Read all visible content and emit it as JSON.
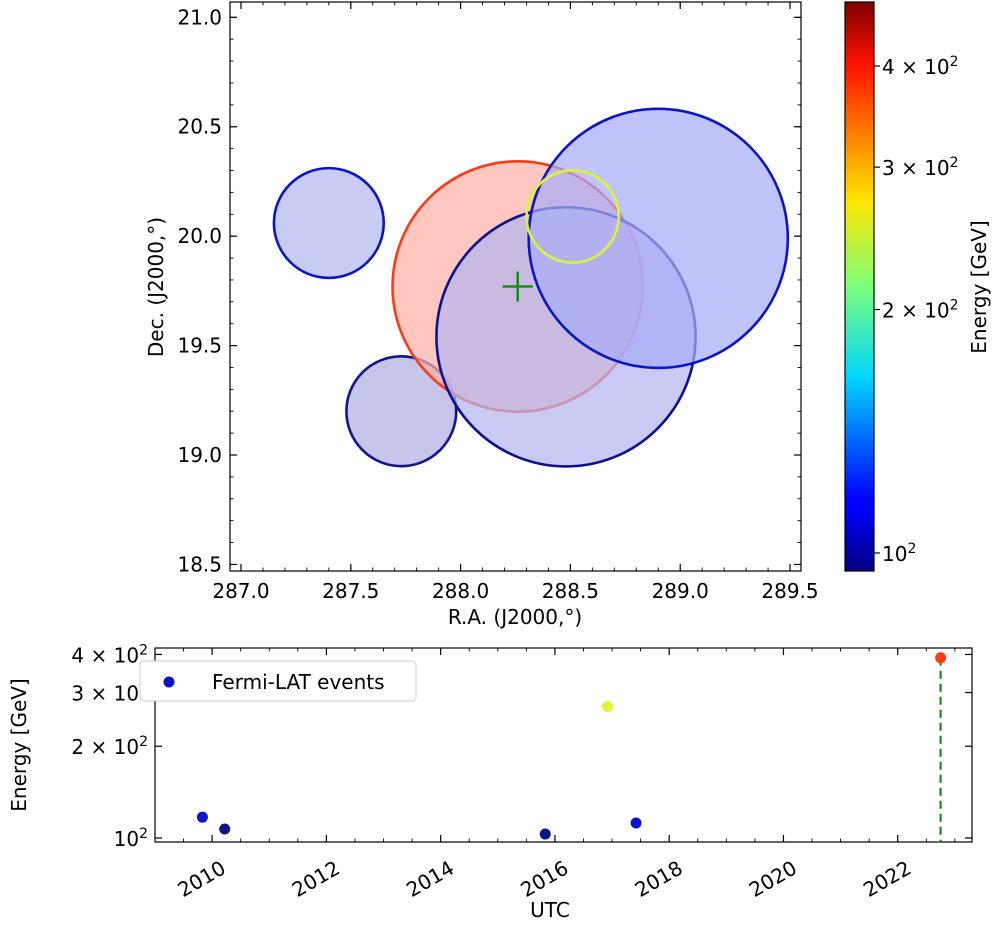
{
  "chart_data": [
    {
      "type": "scatter",
      "subtype": "sky-map-circles",
      "xlabel": "R.A. (J2000,°)",
      "ylabel": "Dec. (J2000,°)",
      "xlim": [
        286.95,
        289.55
      ],
      "ylim": [
        18.47,
        21.07
      ],
      "x_ticks": [
        287.0,
        287.5,
        288.0,
        288.5,
        289.0,
        289.5
      ],
      "x_tick_labels": [
        "287.0",
        "287.5",
        "288.0",
        "288.5",
        "289.0",
        "289.5"
      ],
      "y_ticks": [
        18.5,
        19.0,
        19.5,
        20.0,
        20.5,
        21.0
      ],
      "y_tick_labels": [
        "18.5",
        "19.0",
        "19.5",
        "20.0",
        "20.5",
        "21.0"
      ],
      "grid": false,
      "circles": [
        {
          "ra": 287.4,
          "dec": 20.06,
          "radius": 0.25,
          "energy_gev": 110,
          "edge": "#0a14c8",
          "fill": "#b3b8f0"
        },
        {
          "ra": 287.73,
          "dec": 19.2,
          "radius": 0.25,
          "energy_gev": 102,
          "edge": "#10158c",
          "fill": "#aeb0e0"
        },
        {
          "ra": 288.26,
          "dec": 19.77,
          "radius": 0.57,
          "energy_gev": 390,
          "edge": "#ff3a14",
          "fill": "#ffb2a6"
        },
        {
          "ra": 288.48,
          "dec": 19.54,
          "radius": 0.59,
          "energy_gev": 101,
          "edge": "#0c128e",
          "fill": "#b4b6ee"
        },
        {
          "ra": 288.9,
          "dec": 19.99,
          "radius": 0.59,
          "energy_gev": 110,
          "edge": "#0a14c8",
          "fill": "#a8acf6"
        },
        {
          "ra": 288.51,
          "dec": 20.09,
          "radius": 0.21,
          "energy_gev": 270,
          "edge": "#dcf533",
          "fill": "none"
        }
      ],
      "source_marker": {
        "ra": 288.26,
        "dec": 19.77,
        "symbol": "+",
        "color": "#1a8a1a"
      },
      "colorbar": {
        "label": "Energy [GeV]",
        "scale": "log",
        "range": [
          95,
          480
        ],
        "colormap": "jet",
        "ticks": [
          100,
          200,
          300,
          400
        ],
        "tick_labels": [
          "10²",
          "2 × 10²",
          "3 × 10²",
          "4 × 10²"
        ]
      }
    },
    {
      "type": "scatter",
      "subtype": "time-series",
      "xlabel": "UTC",
      "ylabel": "Energy [GeV]",
      "yscale": "log",
      "xlim": [
        2009.0,
        2023.3
      ],
      "ylim": [
        97,
        420
      ],
      "x_ticks": [
        2010,
        2012,
        2014,
        2016,
        2018,
        2020,
        2022
      ],
      "x_tick_labels": [
        "2010",
        "2012",
        "2014",
        "2016",
        "2018",
        "2020",
        "2022"
      ],
      "y_ticks": [
        100,
        200,
        300,
        400
      ],
      "y_tick_labels": [
        "10²",
        "2 × 10²",
        "3 × 10²",
        "4 × 10²"
      ],
      "legend": {
        "label": "Fermi-LAT events",
        "position": "top-left"
      },
      "series": [
        {
          "name": "Fermi-LAT events",
          "points": [
            {
              "x": 2009.83,
              "y": 117,
              "color": "#0a14c8"
            },
            {
              "x": 2010.22,
              "y": 107,
              "color": "#101487"
            },
            {
              "x": 2015.83,
              "y": 103,
              "color": "#10148c"
            },
            {
              "x": 2016.92,
              "y": 270,
              "color": "#dcf533"
            },
            {
              "x": 2017.42,
              "y": 112,
              "color": "#0a14c8"
            },
            {
              "x": 2022.75,
              "y": 390,
              "color": "#ff3a14"
            }
          ]
        }
      ],
      "vline": {
        "x": 2022.75,
        "style": "dashed",
        "color": "#1a8a1a"
      }
    }
  ]
}
